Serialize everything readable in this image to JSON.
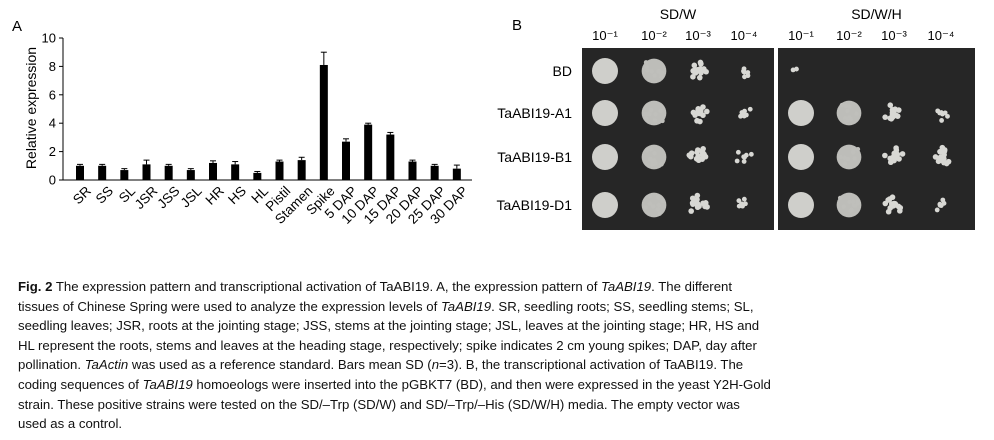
{
  "panel_a": {
    "label": "A",
    "chart_data": {
      "type": "bar",
      "title": "",
      "xlabel": "",
      "ylabel": "Relative expression",
      "ylim": [
        0,
        10
      ],
      "yticks": [
        0,
        2,
        4,
        6,
        8,
        10
      ],
      "categories": [
        "SR",
        "SS",
        "SL",
        "JSR",
        "JSS",
        "JSL",
        "HR",
        "HS",
        "HL",
        "Pistil",
        "Stamen",
        "Spike",
        "5 DAP",
        "10 DAP",
        "15 DAP",
        "20 DAP",
        "25 DAP",
        "30 DAP"
      ],
      "values": [
        1.0,
        1.0,
        0.7,
        1.1,
        1.0,
        0.7,
        1.2,
        1.1,
        0.5,
        1.3,
        1.4,
        8.1,
        2.7,
        3.9,
        3.2,
        1.3,
        1.0,
        0.8
      ],
      "errors": [
        0.1,
        0.1,
        0.1,
        0.3,
        0.1,
        0.1,
        0.15,
        0.2,
        0.1,
        0.1,
        0.2,
        0.9,
        0.2,
        0.1,
        0.15,
        0.1,
        0.1,
        0.25
      ],
      "bar_color": "#000000",
      "grid": false
    }
  },
  "panel_b": {
    "label": "B",
    "media": [
      "SD/W",
      "SD/W/H"
    ],
    "dilutions": [
      "10⁻¹",
      "10⁻²",
      "10⁻³",
      "10⁻⁴"
    ],
    "strains": [
      "BD",
      "TaABI19-A1",
      "TaABI19-B1",
      "TaABI19-D1"
    ],
    "growth_sdw": [
      [
        1,
        0.85,
        0.6,
        0.35
      ],
      [
        1,
        0.85,
        0.6,
        0.35
      ],
      [
        1,
        0.85,
        0.65,
        0.45
      ],
      [
        1,
        0.8,
        0.55,
        0.3
      ]
    ],
    "growth_sdwh": [
      [
        0.1,
        0,
        0,
        0
      ],
      [
        1,
        0.85,
        0.55,
        0.3
      ],
      [
        1,
        0.9,
        0.65,
        0.55
      ],
      [
        1,
        0.8,
        0.5,
        0.3
      ]
    ],
    "plate_color": "#262626",
    "colony_color": "#d8d8d4"
  },
  "caption": {
    "fig_label": "Fig. 2",
    "lines": [
      [
        [
          "n",
          "  The expression pattern and transcriptional activation of TaABI19.  A, the expression pattern of "
        ],
        [
          "i",
          "TaABI19"
        ],
        [
          "n",
          ".  The different"
        ]
      ],
      [
        [
          "n",
          "tissues of Chinese Spring were used to analyze the expression levels of "
        ],
        [
          "i",
          "TaABI19"
        ],
        [
          "n",
          ".  SR, seedling roots; SS, seedling stems; SL,"
        ]
      ],
      [
        [
          "n",
          "seedling leaves; JSR, roots at the jointing stage; JSS, stems at the jointing stage; JSL, leaves at the jointing stage; HR, HS and"
        ]
      ],
      [
        [
          "n",
          "HL represent the roots, stems and leaves at the heading stage, respectively; spike indicates 2 cm young spikes; DAP, day after"
        ]
      ],
      [
        [
          "n",
          "pollination.  "
        ],
        [
          "i",
          "TaActin"
        ],
        [
          "n",
          " was used as a reference standard.  Bars mean SD ("
        ],
        [
          "i",
          "n"
        ],
        [
          "n",
          "=3).  B, the transcriptional activation of TaABI19.  The"
        ]
      ],
      [
        [
          "n",
          "coding sequences of "
        ],
        [
          "i",
          "TaABI19"
        ],
        [
          "n",
          " homoeologs were inserted into the pGBKT7 (BD), and then were expressed in the yeast Y2H-Gold"
        ]
      ],
      [
        [
          "n",
          "strain.  These positive strains were tested on the SD/–Trp (SD/W) and SD/–Trp/–His (SD/W/H) media.  The empty vector was"
        ]
      ],
      [
        [
          "n",
          "used as a control."
        ]
      ]
    ]
  }
}
